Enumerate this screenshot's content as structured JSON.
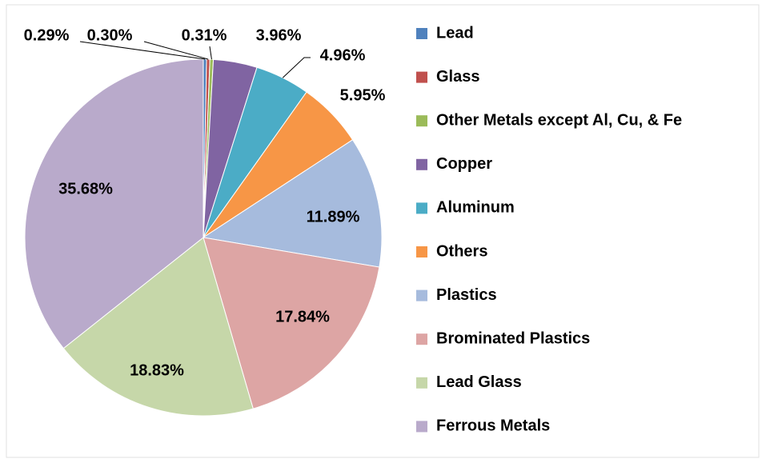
{
  "chart_data": {
    "type": "pie",
    "categories": [
      "Lead",
      "Glass",
      "Other Metals except Al, Cu, & Fe",
      "Copper",
      "Aluminum",
      "Others",
      "Plastics",
      "Brominated Plastics",
      "Lead Glass",
      "Ferrous Metals"
    ],
    "values": [
      0.29,
      0.3,
      0.31,
      3.96,
      4.96,
      5.95,
      11.89,
      17.84,
      18.83,
      35.68
    ],
    "value_labels": [
      "0.29%",
      "0.30%",
      "0.31%",
      "3.96%",
      "4.96%",
      "5.95%",
      "11.89%",
      "17.84%",
      "18.83%",
      "35.68%"
    ],
    "colors": [
      "#4f81bd",
      "#c0504d",
      "#9bbb59",
      "#8064a2",
      "#4bacc6",
      "#f79646",
      "#a6bbdd",
      "#dda5a4",
      "#c6d7a9",
      "#b9aacb"
    ],
    "legend": "right"
  }
}
